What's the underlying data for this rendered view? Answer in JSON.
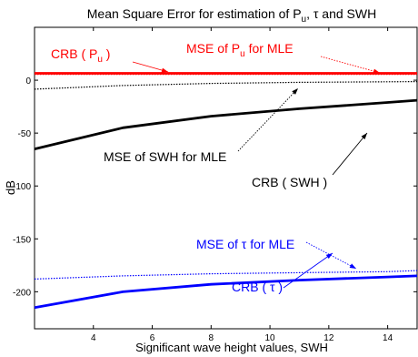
{
  "chart_data": {
    "type": "line",
    "title": {
      "main": "Mean Square Error for estimation of P",
      "sub1": "u",
      "mid": ", τ and SWH"
    },
    "xlabel": "Significant wave height values, SWH",
    "ylabel": "dB",
    "xlim": [
      2,
      15
    ],
    "ylim": [
      -235,
      50
    ],
    "x_ticks": [
      4,
      6,
      8,
      10,
      12,
      14
    ],
    "y_ticks": [
      0,
      -50,
      -100,
      -150,
      -200
    ],
    "grid": false,
    "series": [
      {
        "name": "CRB ( Pu )",
        "style": "thick",
        "color": "#ff0000",
        "x": [
          2,
          5,
          8,
          11,
          14,
          15
        ],
        "y": [
          6.5,
          6.5,
          6.5,
          6.5,
          6.5,
          6.5
        ]
      },
      {
        "name": "MSE of Pu for MLE",
        "style": "dotted",
        "color": "#ff0000",
        "x": [
          2,
          5,
          8,
          11,
          14,
          15
        ],
        "y": [
          5.5,
          5.5,
          5.5,
          5.5,
          5.5,
          5.5
        ]
      },
      {
        "name": "MSE of SWH for MLE",
        "style": "dotted",
        "color": "#000000",
        "x": [
          2,
          5,
          8,
          11,
          14,
          15
        ],
        "y": [
          -8.5,
          -5,
          -3,
          -2,
          -1.5,
          -1.3
        ]
      },
      {
        "name": "CRB ( SWH )",
        "style": "thick",
        "color": "#000000",
        "x": [
          2,
          5,
          8,
          11,
          14,
          15
        ],
        "y": [
          -65,
          -45,
          -34,
          -27,
          -21,
          -19
        ]
      },
      {
        "name": "MSE of τ for MLE",
        "style": "dotted",
        "color": "#0000ff",
        "x": [
          2,
          5,
          8,
          11,
          14,
          15
        ],
        "y": [
          -188,
          -185,
          -183,
          -182,
          -181,
          -180
        ]
      },
      {
        "name": "CRB ( τ )",
        "style": "thick",
        "color": "#0000ff",
        "x": [
          2,
          5,
          8,
          11,
          14,
          15
        ],
        "y": [
          -215,
          -200,
          -193,
          -189,
          -186,
          -185
        ]
      }
    ],
    "annotations": [
      {
        "key": "crb_pu",
        "parts": [
          "CRB ( P",
          "u",
          " )"
        ],
        "color": "#ff0000"
      },
      {
        "key": "mse_pu",
        "parts": [
          "MSE of P",
          "u",
          " for MLE"
        ],
        "color": "#ff0000"
      },
      {
        "key": "mse_swh",
        "parts": [
          "MSE of SWH for MLE"
        ],
        "color": "#000000"
      },
      {
        "key": "crb_swh",
        "parts": [
          "CRB ( SWH )"
        ],
        "color": "#000000"
      },
      {
        "key": "mse_tau",
        "parts": [
          "MSE of τ for MLE"
        ],
        "color": "#0000ff"
      },
      {
        "key": "crb_tau",
        "parts": [
          "CRB ( τ )"
        ],
        "color": "#0000ff"
      }
    ]
  }
}
